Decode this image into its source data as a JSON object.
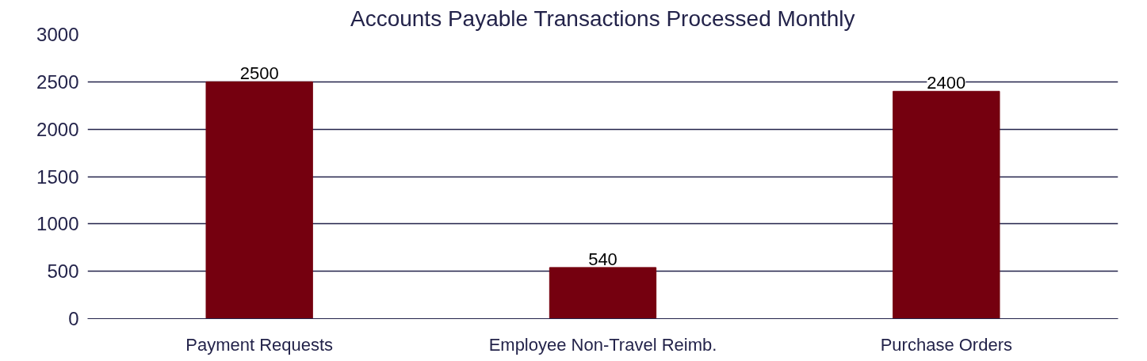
{
  "chart_data": {
    "type": "bar",
    "title": "Accounts Payable Transactions Processed Monthly",
    "categories": [
      "Payment Requests",
      "Employee Non-Travel Reimb.",
      "Purchase Orders"
    ],
    "values": [
      2500,
      540,
      2400
    ],
    "color": "#75000f",
    "ylim": [
      0,
      3000
    ],
    "yticks": [
      0,
      500,
      1000,
      1500,
      2000,
      2500,
      3000
    ],
    "grid": "y",
    "data_labels": true
  }
}
